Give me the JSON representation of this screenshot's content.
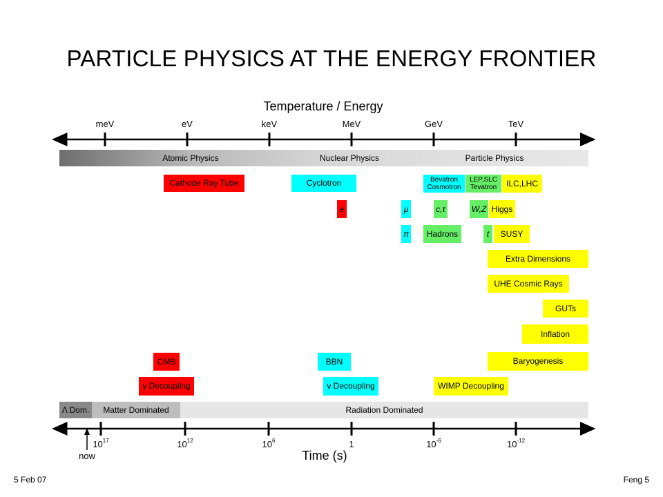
{
  "slide": {
    "title": "PARTICLE PHYSICS AT THE ENERGY FRONTIER",
    "footer_left": "5 Feb 07",
    "footer_right": "Feng 5"
  },
  "top_axis": {
    "title": "Temperature / Energy",
    "ticks": [
      "meV",
      "eV",
      "keV",
      "MeV",
      "GeV",
      "TeV"
    ]
  },
  "top_band": {
    "segments": [
      "Atomic Physics",
      "Nuclear Physics",
      "Particle Physics"
    ]
  },
  "boxes": {
    "cathode_ray_tube": "Cathode Ray Tube",
    "cyclotron": "Cyclotron",
    "bevatron": "Bevatron",
    "cosmotron": "Cosmotron",
    "lep_slc": "LEP,SLC",
    "tevatron": "Tevatron",
    "ilc_lhc": "ILC,LHC",
    "electron": "e",
    "muon": "μ",
    "c_tau": "c,τ",
    "w_z": "W,Z",
    "higgs": "Higgs",
    "pion": "π",
    "hadrons": "Hadrons",
    "top": "t",
    "susy": "SUSY",
    "extra_dimensions": "Extra Dimensions",
    "uhe_cosmic_rays": "UHE Cosmic Rays",
    "guts": "GUTs",
    "inflation": "Inflation",
    "baryogenesis": "Baryogenesis",
    "cmb": "CMB",
    "bbn": "BBN",
    "gamma_decoupling": "γ Decoupling",
    "nu_decoupling": "ν Decoupling",
    "wimp_decoupling": "WIMP Decoupling"
  },
  "bottom_band": {
    "segments": [
      "Λ Dom.",
      "Matter Dominated",
      "Radiation Dominated"
    ]
  },
  "bottom_axis": {
    "title": "Time (s)",
    "now_label": "now",
    "ticks": [
      {
        "base": "10",
        "exp": "17"
      },
      {
        "base": "10",
        "exp": "12"
      },
      {
        "base": "10",
        "exp": "6"
      },
      {
        "base": "1",
        "exp": ""
      },
      {
        "base": "10",
        "exp": "-6"
      },
      {
        "base": "10",
        "exp": "-12"
      }
    ]
  },
  "colors": {
    "red": "#ff0000",
    "cyan": "#00ffff",
    "green": "#66ee66",
    "yellow": "#ffff00"
  }
}
